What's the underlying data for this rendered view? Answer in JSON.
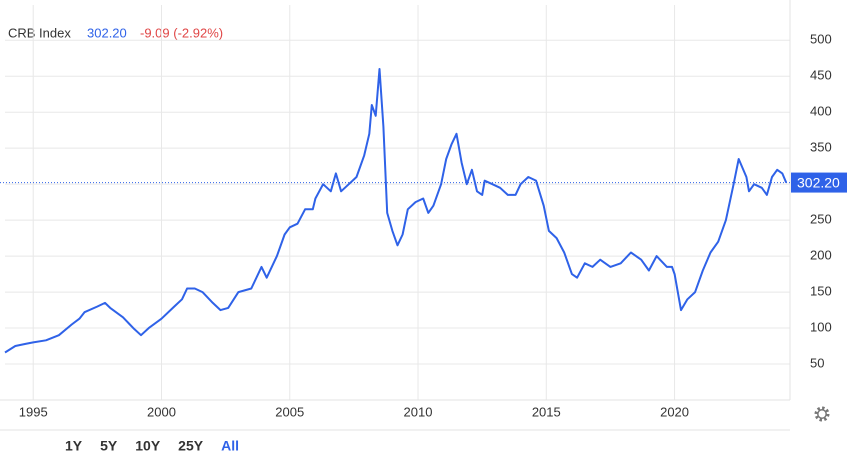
{
  "chart_data": {
    "type": "line",
    "last": {
      "value": 302.2,
      "label": "302.20"
    },
    "change": "-9.09 (-2.92%)",
    "x": [
      1993.9,
      1994.3,
      1994.7,
      1995.0,
      1995.5,
      1996.0,
      1996.5,
      1996.8,
      1997.0,
      1997.5,
      1997.8,
      1998.0,
      1998.5,
      1998.9,
      1999.2,
      1999.5,
      2000.0,
      2000.5,
      2000.8,
      2001.0,
      2001.3,
      2001.6,
      2002.0,
      2002.3,
      2002.6,
      2003.0,
      2003.5,
      2003.9,
      2004.1,
      2004.5,
      2004.8,
      2005.0,
      2005.3,
      2005.6,
      2005.9,
      2006.0,
      2006.3,
      2006.6,
      2006.8,
      2007.0,
      2007.3,
      2007.6,
      2007.9,
      2008.1,
      2008.2,
      2008.35,
      2008.5,
      2008.65,
      2008.8,
      2009.0,
      2009.2,
      2009.4,
      2009.6,
      2009.9,
      2010.2,
      2010.4,
      2010.6,
      2010.9,
      2011.1,
      2011.3,
      2011.5,
      2011.7,
      2011.9,
      2012.1,
      2012.3,
      2012.5,
      2012.6,
      2012.9,
      2013.2,
      2013.5,
      2013.8,
      2014.0,
      2014.3,
      2014.6,
      2014.9,
      2015.1,
      2015.4,
      2015.7,
      2016.0,
      2016.2,
      2016.5,
      2016.8,
      2017.1,
      2017.5,
      2017.9,
      2018.3,
      2018.7,
      2019.0,
      2019.3,
      2019.7,
      2019.9,
      2020.0,
      2020.25,
      2020.5,
      2020.8,
      2021.1,
      2021.4,
      2021.7,
      2022.0,
      2022.3,
      2022.5,
      2022.8,
      2022.9,
      2023.1,
      2023.4,
      2023.6,
      2023.8,
      2024.0,
      2024.2,
      2024.35
    ],
    "series": [
      {
        "name": "CRB Index",
        "color": "#2f62e8",
        "values": [
          66,
          75,
          78,
          80,
          83,
          90,
          105,
          113,
          122,
          130,
          135,
          128,
          115,
          100,
          90,
          100,
          113,
          130,
          140,
          155,
          155,
          150,
          135,
          125,
          128,
          150,
          155,
          185,
          170,
          200,
          230,
          240,
          245,
          265,
          265,
          280,
          300,
          290,
          315,
          290,
          300,
          310,
          340,
          370,
          410,
          395,
          460,
          380,
          260,
          235,
          215,
          230,
          265,
          275,
          280,
          260,
          270,
          300,
          335,
          355,
          370,
          330,
          300,
          320,
          290,
          285,
          305,
          300,
          295,
          285,
          285,
          300,
          310,
          305,
          270,
          235,
          225,
          205,
          175,
          170,
          190,
          185,
          195,
          185,
          190,
          205,
          195,
          180,
          200,
          185,
          185,
          175,
          125,
          140,
          150,
          180,
          205,
          220,
          250,
          300,
          335,
          310,
          290,
          300,
          295,
          285,
          310,
          320,
          315,
          302.2
        ]
      }
    ],
    "xlim": [
      1993.9,
      2024.5
    ],
    "xticks": [
      1995,
      2000,
      2005,
      2010,
      2015,
      2020
    ],
    "ylim": [
      0,
      549
    ],
    "yticks": [
      50,
      100,
      150,
      200,
      250,
      300,
      350,
      400,
      450,
      500
    ],
    "grid": true,
    "ranges": [
      "1Y",
      "5Y",
      "10Y",
      "25Y",
      "All"
    ],
    "active_range": "All"
  }
}
